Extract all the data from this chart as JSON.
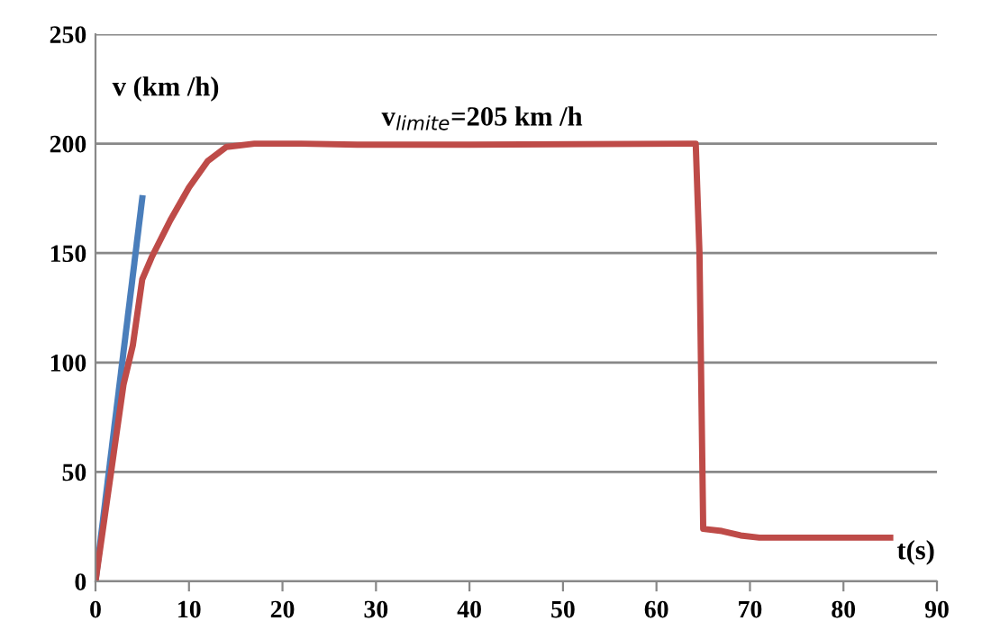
{
  "chart_data": {
    "type": "line",
    "xlabel": "t(s)",
    "ylabel": "v (km /h)",
    "annotations": [
      "v$_{limite}$=205 km /h"
    ],
    "series": [
      {
        "color": "#4a7ebb",
        "x": [
          0,
          5
        ],
        "values": [
          0,
          175
        ]
      },
      {
        "color": "#be4b48",
        "x": [
          0,
          1,
          2,
          3,
          4,
          5,
          6,
          8,
          10,
          12,
          14,
          17,
          22,
          28,
          40,
          64.2,
          64.6,
          65,
          67,
          69,
          71,
          80,
          85
        ],
        "values": [
          0,
          30,
          60,
          90,
          108,
          138,
          148,
          165,
          180,
          192,
          198.5,
          200,
          200,
          199.5,
          199.5,
          200,
          150,
          24,
          23,
          21,
          20,
          20,
          20
        ]
      }
    ],
    "xlim": [
      0,
      90
    ],
    "xticks": [
      0,
      10,
      20,
      30,
      40,
      50,
      60,
      70,
      80,
      90
    ],
    "ylim": [
      0,
      250
    ],
    "yticks": [
      0,
      50,
      100,
      150,
      200,
      250
    ],
    "grid": "y",
    "marker": "none",
    "line_style": "solid"
  }
}
